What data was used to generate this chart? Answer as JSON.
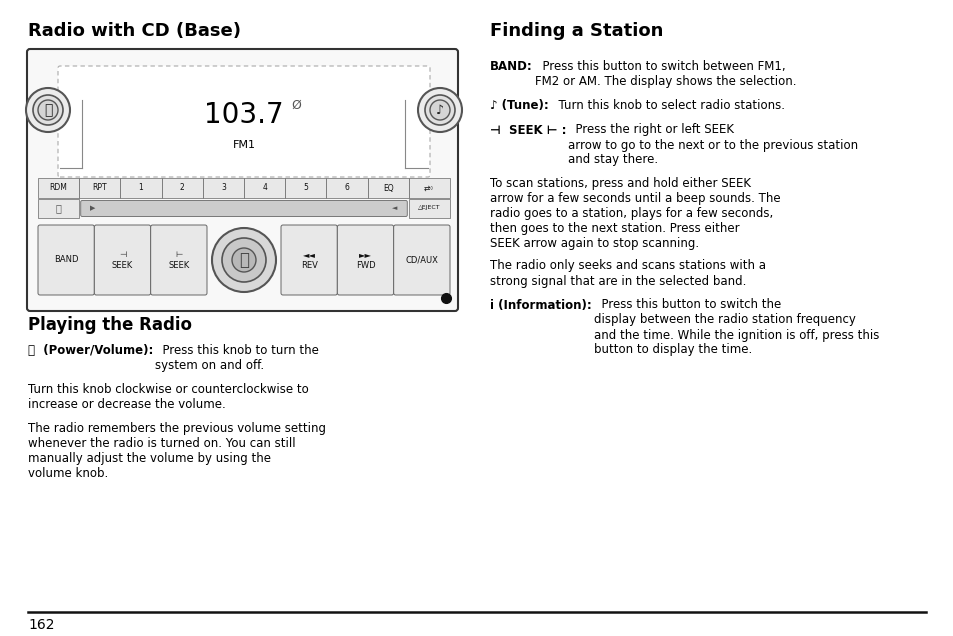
{
  "bg_color": "#ffffff",
  "title_left": "Radio with CD (Base)",
  "title_right": "Finding a Station",
  "section2_title": "Playing the Radio",
  "page_number": "162",
  "radio_display_num": "103.7",
  "radio_subtext": "FM1",
  "buttons_row1": [
    "RDM",
    "RPT",
    "1",
    "2",
    "3",
    "4",
    "5",
    "6",
    "EQ",
    "⇄◦"
  ],
  "right_paras": [
    {
      "bold": "BAND:",
      "normal": "  Press this button to switch between FM1,\nFM2 or AM. The display shows the selection."
    },
    {
      "bold": "♪ (Tune):",
      "normal": "  Turn this knob to select radio stations."
    },
    {
      "bold": "⊣  SEEK ⊢ :",
      "normal": "  Press the right or left SEEK\narrow to go to the next or to the previous station\nand stay there."
    },
    {
      "bold": "",
      "normal": "To scan stations, press and hold either SEEK\narrow for a few seconds until a beep sounds. The\nradio goes to a station, plays for a few seconds,\nthen goes to the next station. Press either\nSEEK arrow again to stop scanning."
    },
    {
      "bold": "",
      "normal": "The radio only seeks and scans stations with a\nstrong signal that are in the selected band."
    },
    {
      "bold": "i (Information):",
      "normal": "  Press this button to switch the\ndisplay between the radio station frequency\nand the time. While the ignition is off, press this\nbutton to display the time."
    }
  ],
  "left_paras": [
    {
      "bold": "⏻  (Power/Volume):",
      "normal": "  Press this knob to turn the\nsystem on and off."
    },
    {
      "bold": "",
      "normal": "Turn this knob clockwise or counterclockwise to\nincrease or decrease the volume."
    },
    {
      "bold": "",
      "normal": "The radio remembers the previous volume setting\nwhenever the radio is turned on. You can still\nmanually adjust the volume by using the\nvolume knob."
    }
  ]
}
